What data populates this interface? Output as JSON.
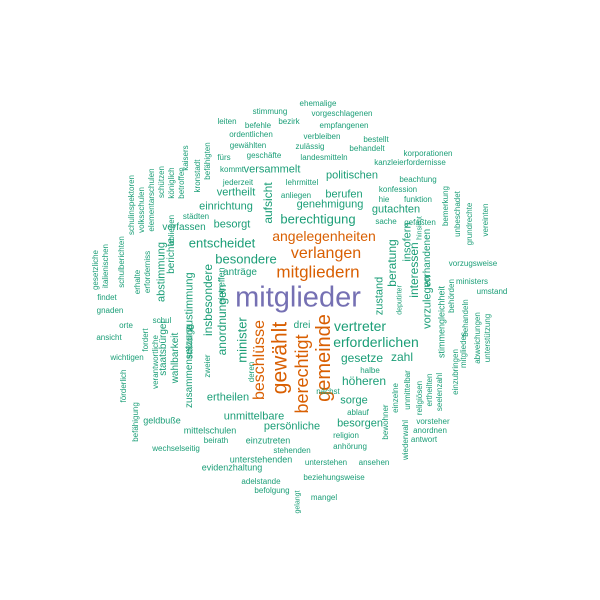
{
  "colors": {
    "purple": "#7570b3",
    "orange": "#d95f02",
    "teal": "#1b9e77"
  },
  "words": [
    {
      "t": "mitglieder",
      "c": "purple"
    },
    {
      "t": "gewählt",
      "c": "orange"
    },
    {
      "t": "gemeinde",
      "c": "orange"
    },
    {
      "t": "berechtigt",
      "c": "orange"
    },
    {
      "t": "mitgliedern",
      "c": "orange"
    },
    {
      "t": "beschlüsse",
      "c": "orange"
    },
    {
      "t": "verlangen",
      "c": "orange"
    },
    {
      "t": "angelegenheiten",
      "c": "orange"
    },
    {
      "t": "vertreter",
      "c": "teal"
    },
    {
      "t": "erforderlichen",
      "c": "teal"
    },
    {
      "t": "berechtigung",
      "c": "teal"
    },
    {
      "t": "besondere",
      "c": "teal"
    },
    {
      "t": "entscheidet",
      "c": "teal"
    },
    {
      "t": "minister",
      "c": "teal"
    },
    {
      "t": "anordnungen",
      "c": "teal"
    },
    {
      "t": "insbesondere",
      "c": "teal"
    },
    {
      "t": "interessen",
      "c": "teal"
    },
    {
      "t": "beratung",
      "c": "teal"
    },
    {
      "t": "zustand",
      "c": "teal"
    },
    {
      "t": "zahl",
      "c": "teal"
    },
    {
      "t": "gesetze",
      "c": "teal"
    },
    {
      "t": "höheren",
      "c": "teal"
    },
    {
      "t": "sorge",
      "c": "teal"
    },
    {
      "t": "besorgen",
      "c": "teal"
    },
    {
      "t": "persönliche",
      "c": "teal"
    },
    {
      "t": "unmittelbare",
      "c": "teal"
    },
    {
      "t": "ertheilen",
      "c": "teal"
    },
    {
      "t": "abstimmung",
      "c": "teal"
    },
    {
      "t": "zustimmung",
      "c": "teal"
    },
    {
      "t": "aufsicht",
      "c": "teal"
    },
    {
      "t": "genehmigung",
      "c": "teal"
    },
    {
      "t": "berufen",
      "c": "teal"
    },
    {
      "t": "politischen",
      "c": "teal"
    },
    {
      "t": "gutachten",
      "c": "teal"
    },
    {
      "t": "einrichtung",
      "c": "teal"
    },
    {
      "t": "vertheilt",
      "c": "teal"
    },
    {
      "t": "versammelt",
      "c": "teal"
    },
    {
      "t": "besorgt",
      "c": "teal"
    },
    {
      "t": "verfassen",
      "c": "teal"
    },
    {
      "t": "insofern",
      "c": "teal"
    },
    {
      "t": "vorzulegen",
      "c": "teal"
    },
    {
      "t": "vorhandenen",
      "c": "teal"
    },
    {
      "t": "drei",
      "c": "teal"
    },
    {
      "t": "anträge",
      "c": "teal"
    },
    {
      "t": "eintreffen",
      "c": "teal"
    },
    {
      "t": "ständige",
      "c": "teal"
    },
    {
      "t": "ehemalige",
      "c": "teal"
    },
    {
      "t": "vorgeschlagenen",
      "c": "teal"
    },
    {
      "t": "stimmung",
      "c": "teal"
    },
    {
      "t": "bezirk",
      "c": "teal"
    },
    {
      "t": "empfangenen",
      "c": "teal"
    },
    {
      "t": "leiten",
      "c": "teal"
    },
    {
      "t": "befehle",
      "c": "teal"
    },
    {
      "t": "ordentlichen",
      "c": "teal"
    },
    {
      "t": "verbleiben",
      "c": "teal"
    },
    {
      "t": "bestellt",
      "c": "teal"
    },
    {
      "t": "gewählten",
      "c": "teal"
    },
    {
      "t": "zulässig",
      "c": "teal"
    },
    {
      "t": "behandelt",
      "c": "teal"
    },
    {
      "t": "korporationen",
      "c": "teal"
    },
    {
      "t": "fürs",
      "c": "teal"
    },
    {
      "t": "geschäfte",
      "c": "teal"
    },
    {
      "t": "landesmitteln",
      "c": "teal"
    },
    {
      "t": "kanzleierfordernisse",
      "c": "teal"
    },
    {
      "t": "kommt",
      "c": "teal"
    },
    {
      "t": "beachtung",
      "c": "teal"
    },
    {
      "t": "jederzeit",
      "c": "teal"
    },
    {
      "t": "lehrmittel",
      "c": "teal"
    },
    {
      "t": "konfession",
      "c": "teal"
    },
    {
      "t": "anliegen",
      "c": "teal"
    },
    {
      "t": "hie",
      "c": "teal"
    },
    {
      "t": "funktion",
      "c": "teal"
    },
    {
      "t": "sache",
      "c": "teal"
    },
    {
      "t": "bemerkung",
      "c": "teal"
    },
    {
      "t": "städten",
      "c": "teal"
    },
    {
      "t": "königlich",
      "c": "teal"
    },
    {
      "t": "schulinspektoren",
      "c": "teal"
    },
    {
      "t": "elementarschulen",
      "c": "teal"
    },
    {
      "t": "schützen",
      "c": "teal"
    },
    {
      "t": "kaisers",
      "c": "teal"
    },
    {
      "t": "betroffen",
      "c": "teal"
    },
    {
      "t": "befähigten",
      "c": "teal"
    },
    {
      "t": "kronstadt",
      "c": "teal"
    },
    {
      "t": "obliegen",
      "c": "teal"
    },
    {
      "t": "volksschulen",
      "c": "teal"
    },
    {
      "t": "italienischen",
      "c": "teal"
    },
    {
      "t": "gesetzliche",
      "c": "teal"
    },
    {
      "t": "schulberichten",
      "c": "teal"
    },
    {
      "t": "erforderniss",
      "c": "teal"
    },
    {
      "t": "erhalte",
      "c": "teal"
    },
    {
      "t": "berichte",
      "c": "teal"
    },
    {
      "t": "schul",
      "c": "teal"
    },
    {
      "t": "findet",
      "c": "teal"
    },
    {
      "t": "gnaden",
      "c": "teal"
    },
    {
      "t": "orte",
      "c": "teal"
    },
    {
      "t": "ansicht",
      "c": "teal"
    },
    {
      "t": "fordert",
      "c": "teal"
    },
    {
      "t": "wichtigen",
      "c": "teal"
    },
    {
      "t": "förderlich",
      "c": "teal"
    },
    {
      "t": "verantwortliche",
      "c": "teal"
    },
    {
      "t": "staatsbürger",
      "c": "teal"
    },
    {
      "t": "wahlbarkeit",
      "c": "teal"
    },
    {
      "t": "zusammensetzung",
      "c": "teal"
    },
    {
      "t": "zweier",
      "c": "teal"
    },
    {
      "t": "deren",
      "c": "teal"
    },
    {
      "t": "befähigung",
      "c": "teal"
    },
    {
      "t": "geldbuße",
      "c": "teal"
    },
    {
      "t": "mittelschulen",
      "c": "teal"
    },
    {
      "t": "beirath",
      "c": "teal"
    },
    {
      "t": "einzutreten",
      "c": "teal"
    },
    {
      "t": "wechselseitig",
      "c": "teal"
    },
    {
      "t": "stehenden",
      "c": "teal"
    },
    {
      "t": "unterstehenden",
      "c": "teal"
    },
    {
      "t": "unterstehen",
      "c": "teal"
    },
    {
      "t": "ansehen",
      "c": "teal"
    },
    {
      "t": "evidenzhaltung",
      "c": "teal"
    },
    {
      "t": "adelstande",
      "c": "teal"
    },
    {
      "t": "beziehungsweise",
      "c": "teal"
    },
    {
      "t": "befolgung",
      "c": "teal"
    },
    {
      "t": "gelangt",
      "c": "teal"
    },
    {
      "t": "mangel",
      "c": "teal"
    },
    {
      "t": "religion",
      "c": "teal"
    },
    {
      "t": "anhörung",
      "c": "teal"
    },
    {
      "t": "ablauf",
      "c": "teal"
    },
    {
      "t": "halbe",
      "c": "teal"
    },
    {
      "t": "nächst",
      "c": "teal"
    },
    {
      "t": "einzelne",
      "c": "teal"
    },
    {
      "t": "unmittelbar",
      "c": "teal"
    },
    {
      "t": "bewohner",
      "c": "teal"
    },
    {
      "t": "wiederwahl",
      "c": "teal"
    },
    {
      "t": "vorsteher",
      "c": "teal"
    },
    {
      "t": "anordnen",
      "c": "teal"
    },
    {
      "t": "antwort",
      "c": "teal"
    },
    {
      "t": "religiösen",
      "c": "teal"
    },
    {
      "t": "seelenzahl",
      "c": "teal"
    },
    {
      "t": "ertheilten",
      "c": "teal"
    },
    {
      "t": "stimmengleichheit",
      "c": "teal"
    },
    {
      "t": "behörden",
      "c": "teal"
    },
    {
      "t": "einzubringen",
      "c": "teal"
    },
    {
      "t": "mitgliedes",
      "c": "teal"
    },
    {
      "t": "behandeln",
      "c": "teal"
    },
    {
      "t": "abweichungen",
      "c": "teal"
    },
    {
      "t": "unterstützung",
      "c": "teal"
    },
    {
      "t": "ministers",
      "c": "teal"
    },
    {
      "t": "umstand",
      "c": "teal"
    },
    {
      "t": "unbeschadet",
      "c": "teal"
    },
    {
      "t": "grundrechte",
      "c": "teal"
    },
    {
      "t": "vereinten",
      "c": "teal"
    },
    {
      "t": "vorzugsweise",
      "c": "teal"
    },
    {
      "t": "deputirter",
      "c": "teal"
    },
    {
      "t": "hinsicht",
      "c": "teal"
    },
    {
      "t": "gefaßten",
      "c": "teal"
    }
  ]
}
